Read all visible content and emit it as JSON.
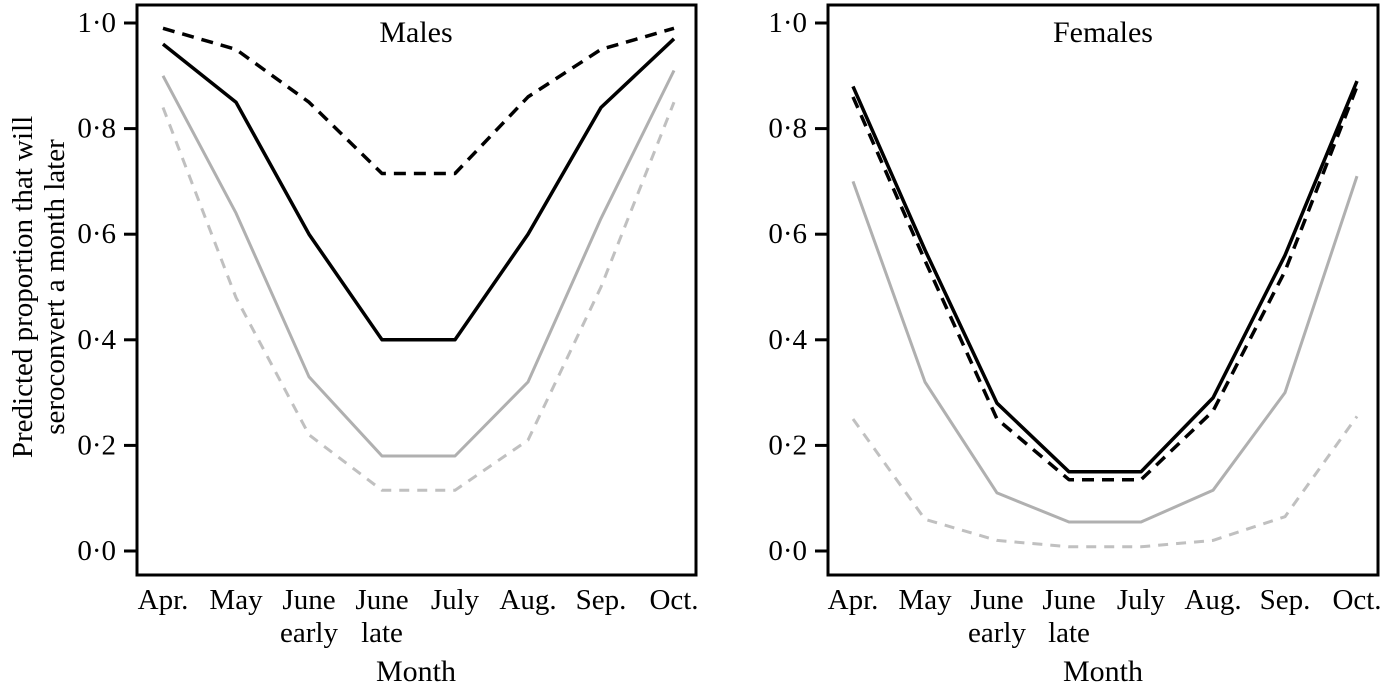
{
  "figure": {
    "background": "#ffffff",
    "description_visible_text_only": true
  },
  "colors": {
    "axis": "#000000",
    "black_series": "#000000",
    "grey_solid_series": "#b0b0b0",
    "grey_dashed_series": "#c0c0c0"
  },
  "chart_data": [
    {
      "type": "line",
      "title": "Males",
      "xlabel": "Month",
      "ylabel": "Predicted proportion that will seroconvert a month later",
      "ylabel_lines": [
        "Predicted proportion that will",
        "seroconvert a month later"
      ],
      "categories": [
        "Apr.",
        "May",
        "June early",
        "June late",
        "July",
        "Aug.",
        "Sep.",
        "Oct."
      ],
      "x_tick_lines": [
        [
          "Apr."
        ],
        [
          "May"
        ],
        [
          "June",
          "early"
        ],
        [
          "June",
          "late"
        ],
        [
          "July"
        ],
        [
          "Aug."
        ],
        [
          "Sep."
        ],
        [
          "Oct."
        ]
      ],
      "ylim": [
        0,
        1
      ],
      "grid": false,
      "legend": null,
      "yticks": [
        {
          "v": 1.0,
          "label": "1·0"
        },
        {
          "v": 0.8,
          "label": "0·8"
        },
        {
          "v": 0.6,
          "label": "0·6"
        },
        {
          "v": 0.4,
          "label": "0·4"
        },
        {
          "v": 0.2,
          "label": "0·2"
        },
        {
          "v": 0.0,
          "label": "0·0"
        }
      ],
      "series": [
        {
          "name": "grey-dashed-line",
          "line_style": "dashed",
          "color": "#c0c0c0",
          "values": [
            0.84,
            0.48,
            0.22,
            0.115,
            0.115,
            0.21,
            0.5,
            0.85
          ]
        },
        {
          "name": "grey-solid-line",
          "line_style": "solid",
          "color": "#b0b0b0",
          "values": [
            0.9,
            0.64,
            0.33,
            0.18,
            0.18,
            0.32,
            0.63,
            0.91
          ]
        },
        {
          "name": "black-dashed-line",
          "line_style": "dashed",
          "color": "#000000",
          "values": [
            0.99,
            0.95,
            0.85,
            0.715,
            0.715,
            0.86,
            0.95,
            0.99
          ]
        },
        {
          "name": "black-solid-line",
          "line_style": "solid",
          "color": "#000000",
          "values": [
            0.96,
            0.85,
            0.6,
            0.4,
            0.4,
            0.6,
            0.84,
            0.97
          ]
        }
      ]
    },
    {
      "type": "line",
      "title": "Females",
      "xlabel": "Month",
      "ylabel": "",
      "ylabel_lines": [],
      "categories": [
        "Apr.",
        "May",
        "June early",
        "June late",
        "July",
        "Aug.",
        "Sep.",
        "Oct."
      ],
      "x_tick_lines": [
        [
          "Apr."
        ],
        [
          "May"
        ],
        [
          "June",
          "early"
        ],
        [
          "June",
          "late"
        ],
        [
          "July"
        ],
        [
          "Aug."
        ],
        [
          "Sep."
        ],
        [
          "Oct."
        ]
      ],
      "ylim": [
        0,
        1
      ],
      "grid": false,
      "legend": null,
      "yticks": [
        {
          "v": 1.0,
          "label": "1·0"
        },
        {
          "v": 0.8,
          "label": "0·8"
        },
        {
          "v": 0.6,
          "label": "0·6"
        },
        {
          "v": 0.4,
          "label": "0·4"
        },
        {
          "v": 0.2,
          "label": "0·2"
        },
        {
          "v": 0.0,
          "label": "0·0"
        }
      ],
      "series": [
        {
          "name": "grey-dashed-line",
          "line_style": "dashed",
          "color": "#c0c0c0",
          "values": [
            0.25,
            0.06,
            0.02,
            0.008,
            0.008,
            0.02,
            0.065,
            0.255
          ]
        },
        {
          "name": "grey-solid-line",
          "line_style": "solid",
          "color": "#b0b0b0",
          "values": [
            0.7,
            0.32,
            0.11,
            0.055,
            0.055,
            0.115,
            0.3,
            0.71
          ]
        },
        {
          "name": "black-dashed-line",
          "line_style": "dashed",
          "color": "#000000",
          "values": [
            0.86,
            0.55,
            0.25,
            0.135,
            0.135,
            0.265,
            0.53,
            0.88
          ]
        },
        {
          "name": "black-solid-line",
          "line_style": "solid",
          "color": "#000000",
          "values": [
            0.88,
            0.57,
            0.28,
            0.15,
            0.15,
            0.29,
            0.56,
            0.89
          ]
        }
      ]
    }
  ]
}
